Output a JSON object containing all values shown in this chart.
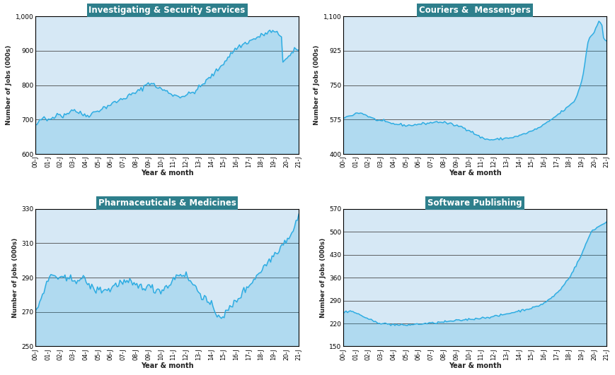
{
  "subplots": [
    {
      "title": "Investigating & Security Services",
      "ylabel": "Number of Jobs (000s)",
      "xlabel": "Year & month",
      "ylim": [
        600,
        1000
      ],
      "yticks": [
        600,
        700,
        800,
        900,
        1000
      ],
      "ytick_labels": [
        "600",
        "700",
        "800",
        "900",
        "1,000"
      ],
      "xtick_labels": [
        "00-J",
        "01-J",
        "02-J",
        "03-J",
        "04-J",
        "05-J",
        "06-J",
        "07-J",
        "08-J",
        "09-J",
        "10-J",
        "11-J",
        "12-J",
        "13-J",
        "14-J",
        "15-J",
        "16-J",
        "17-J",
        "18-J",
        "19-J",
        "20-J",
        "21-J"
      ],
      "data": [
        683,
        686,
        690,
        695,
        700,
        705,
        703,
        700,
        698,
        700,
        702,
        704,
        706,
        710,
        715,
        720,
        718,
        714,
        712,
        710,
        712,
        715,
        718,
        722,
        725,
        728,
        730,
        728,
        725,
        722,
        720,
        718,
        716,
        715,
        714,
        713,
        712,
        714,
        716,
        718,
        720,
        722,
        724,
        726,
        728,
        730,
        732,
        734,
        736,
        738,
        740,
        742,
        744,
        746,
        748,
        750,
        752,
        754,
        756,
        758,
        760,
        762,
        764,
        766,
        768,
        770,
        772,
        774,
        776,
        778,
        780,
        782,
        785,
        788,
        792,
        796,
        800,
        804,
        807,
        808,
        806,
        803,
        800,
        797,
        795,
        793,
        791,
        789,
        787,
        785,
        783,
        781,
        779,
        777,
        775,
        773,
        771,
        770,
        769,
        768,
        768,
        768,
        769,
        770,
        771,
        772,
        774,
        776,
        778,
        780,
        782,
        785,
        788,
        792,
        796,
        800,
        804,
        808,
        812,
        816,
        820,
        824,
        828,
        832,
        836,
        840,
        845,
        850,
        855,
        860,
        865,
        870,
        875,
        880,
        885,
        890,
        895,
        900,
        905,
        908,
        910,
        913,
        915,
        917,
        920,
        922,
        924,
        926,
        928,
        930,
        932,
        934,
        936,
        938,
        940,
        942,
        944,
        946,
        948,
        950,
        952,
        954,
        956,
        956,
        956,
        954,
        952,
        950,
        948,
        946,
        944,
        870,
        872,
        875,
        878,
        882,
        886,
        890,
        895,
        900,
        903,
        905,
        906
      ]
    },
    {
      "title": "Couriers &  Messengers",
      "ylabel": "Number of Jobs (000s)",
      "xlabel": "Year & month",
      "ylim": [
        400,
        1100
      ],
      "yticks": [
        400,
        575,
        750,
        925,
        1100
      ],
      "ytick_labels": [
        "400",
        "575",
        "750",
        "925",
        "1,100"
      ],
      "xtick_labels": [
        "00-J",
        "01-J",
        "02-J",
        "03-J",
        "04-J",
        "05-J",
        "06-J",
        "07-J",
        "08-J",
        "09-J",
        "10-J",
        "11-J",
        "12-J",
        "13-J",
        "14-J",
        "15-J",
        "16-J",
        "17-J",
        "18-J",
        "19-J",
        "20-J",
        "21-J"
      ],
      "data": [
        582,
        585,
        588,
        591,
        594,
        597,
        600,
        603,
        606,
        608,
        610,
        608,
        606,
        604,
        600,
        596,
        592,
        588,
        584,
        580,
        577,
        575,
        573,
        571,
        569,
        567,
        565,
        563,
        561,
        559,
        557,
        555,
        554,
        553,
        552,
        551,
        550,
        549,
        548,
        547,
        546,
        545,
        545,
        546,
        547,
        548,
        549,
        550,
        551,
        552,
        553,
        554,
        555,
        556,
        557,
        558,
        559,
        560,
        561,
        562,
        563,
        563,
        563,
        562,
        561,
        560,
        558,
        556,
        554,
        552,
        550,
        548,
        546,
        544,
        542,
        540,
        538,
        535,
        532,
        528,
        524,
        520,
        515,
        510,
        505,
        500,
        495,
        490,
        486,
        483,
        480,
        477,
        475,
        474,
        473,
        473,
        473,
        473,
        474,
        475,
        476,
        477,
        478,
        479,
        480,
        481,
        482,
        483,
        484,
        485,
        487,
        489,
        491,
        493,
        496,
        499,
        502,
        505,
        508,
        511,
        514,
        517,
        520,
        524,
        528,
        532,
        536,
        540,
        545,
        550,
        555,
        560,
        566,
        572,
        578,
        584,
        590,
        596,
        602,
        608,
        614,
        620,
        626,
        632,
        638,
        644,
        652,
        660,
        668,
        680,
        700,
        720,
        745,
        775,
        810,
        860,
        920,
        970,
        990,
        1000,
        1010,
        1020,
        1040,
        1060,
        1080,
        1070,
        1055,
        990,
        975,
        972
      ]
    },
    {
      "title": "Pharmaceuticals & Medicines",
      "ylabel": "Number of Jobs (000s)",
      "xlabel": "Year & month",
      "ylim": [
        250,
        330
      ],
      "yticks": [
        250,
        270,
        290,
        310,
        330
      ],
      "ytick_labels": [
        "250",
        "270",
        "290",
        "310",
        "330"
      ],
      "xtick_labels": [
        "00-J",
        "01-J",
        "02-J",
        "03-J",
        "04-J",
        "05-J",
        "06-J",
        "07-J",
        "08-J",
        "09-J",
        "10-J",
        "11-J",
        "12-J",
        "13-J",
        "14-J",
        "15-J",
        "16-J",
        "17-J",
        "18-J",
        "19-J",
        "20-J",
        "21-J"
      ],
      "data": [
        271,
        272,
        274,
        276,
        278,
        280,
        282,
        284,
        286,
        288,
        290,
        291,
        292,
        291,
        291,
        290,
        290,
        290,
        290,
        289,
        289,
        289,
        289,
        289,
        289,
        289,
        289,
        289,
        289,
        289,
        289,
        289,
        289,
        289,
        289,
        289,
        288,
        287,
        286,
        285,
        284,
        283,
        283,
        283,
        283,
        283,
        283,
        283,
        283,
        283,
        283,
        283,
        283,
        283,
        284,
        285,
        285,
        286,
        286,
        287,
        287,
        287,
        287,
        287,
        287,
        287,
        287,
        287,
        286,
        286,
        286,
        285,
        285,
        285,
        285,
        285,
        285,
        285,
        285,
        285,
        285,
        284,
        284,
        284,
        283,
        283,
        283,
        283,
        283,
        283,
        283,
        284,
        284,
        285,
        285,
        286,
        287,
        288,
        289,
        290,
        291,
        292,
        292,
        292,
        292,
        292,
        292,
        291,
        290,
        289,
        288,
        287,
        286,
        285,
        284,
        283,
        282,
        281,
        280,
        279,
        278,
        277,
        276,
        275,
        274,
        273,
        272,
        271,
        270,
        269,
        268,
        268,
        268,
        268,
        268,
        269,
        270,
        271,
        272,
        273,
        274,
        275,
        276,
        277,
        278,
        279,
        280,
        281,
        282,
        283,
        284,
        285,
        286,
        287,
        288,
        289,
        290,
        291,
        292,
        293,
        294,
        295,
        296,
        297,
        298,
        299,
        300,
        301,
        302,
        303,
        304,
        305,
        306,
        307,
        308,
        309,
        310,
        311,
        312,
        313,
        314,
        315,
        316,
        318,
        320,
        322,
        324,
        326
      ]
    },
    {
      "title": "Software Publishing",
      "ylabel": "Number of Jobs (000s)",
      "xlabel": "Year & month",
      "ylim": [
        150,
        570
      ],
      "yticks": [
        150,
        220,
        290,
        360,
        430,
        500,
        570
      ],
      "ytick_labels": [
        "150",
        "220",
        "290",
        "360",
        "430",
        "500",
        "570"
      ],
      "xtick_labels": [
        "00-J",
        "01-J",
        "02-J",
        "03-J",
        "04-J",
        "05-J",
        "06-J",
        "07-J",
        "08-J",
        "09-J",
        "10-J",
        "11-J",
        "12-J",
        "13-J",
        "14-J",
        "15-J",
        "16-J",
        "17-J",
        "18-J",
        "19-J",
        "20-J",
        "21-J"
      ],
      "data": [
        252,
        254,
        256,
        257,
        258,
        258,
        257,
        256,
        254,
        252,
        250,
        248,
        246,
        244,
        242,
        240,
        238,
        236,
        234,
        232,
        230,
        228,
        226,
        225,
        224,
        223,
        222,
        221,
        220,
        220,
        219,
        219,
        218,
        218,
        217,
        217,
        217,
        216,
        216,
        215,
        215,
        215,
        215,
        215,
        215,
        215,
        215,
        216,
        216,
        217,
        217,
        217,
        218,
        218,
        218,
        218,
        219,
        219,
        219,
        220,
        220,
        220,
        221,
        221,
        221,
        222,
        222,
        222,
        223,
        223,
        224,
        224,
        225,
        225,
        225,
        226,
        226,
        227,
        227,
        228,
        228,
        229,
        229,
        229,
        230,
        230,
        231,
        231,
        232,
        232,
        233,
        233,
        233,
        234,
        234,
        235,
        235,
        236,
        236,
        237,
        237,
        238,
        238,
        239,
        239,
        240,
        240,
        241,
        241,
        242,
        243,
        243,
        244,
        245,
        246,
        247,
        248,
        249,
        250,
        251,
        252,
        253,
        254,
        255,
        256,
        257,
        258,
        259,
        260,
        261,
        262,
        263,
        264,
        265,
        266,
        267,
        268,
        269,
        270,
        272,
        274,
        276,
        278,
        280,
        282,
        285,
        288,
        291,
        294,
        297,
        300,
        304,
        308,
        312,
        316,
        320,
        325,
        330,
        336,
        342,
        348,
        354,
        360,
        366,
        373,
        381,
        389,
        397,
        405,
        413,
        421,
        431,
        441,
        451,
        461,
        471,
        481,
        491,
        500,
        505,
        508,
        510,
        512,
        515,
        518,
        520,
        522,
        525,
        528,
        530
      ]
    }
  ],
  "line_color": "#29ABE2",
  "fill_color": "#29ABE2",
  "fill_alpha": 0.22,
  "background_color": "#D6E8F5",
  "title_bg_color": "#2E7F8C",
  "title_text_color": "#FFFFFF",
  "axis_bg_color": "#FFFFFF",
  "grid_color": "#4A4A4A",
  "border_color": "#000000",
  "line_width": 1.0
}
